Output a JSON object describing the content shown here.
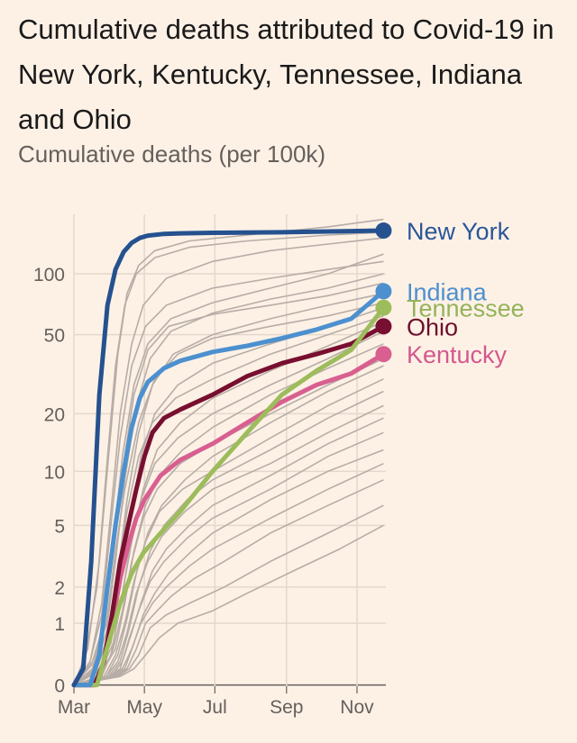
{
  "chart_data": {
    "type": "line",
    "title": "Cumulative deaths attributed to Covid-19 in New York, Kentucky, Tennessee, Indiana and Ohio",
    "subtitle": "Cumulative deaths (per 100k)",
    "x_ticks": [
      "Mar",
      "May",
      "Jul",
      "Sep",
      "Nov"
    ],
    "x_tick_days": [
      0,
      61,
      122,
      184,
      245
    ],
    "xlim": [
      0,
      270
    ],
    "y_scale": "log",
    "y_ticks": [
      0,
      1,
      2,
      5,
      10,
      20,
      50,
      100
    ],
    "ylim": [
      0,
      190
    ],
    "grid": true,
    "legend": "direct-labels-right",
    "highlighted": [
      {
        "name": "New York",
        "color": "#25518f",
        "label_color": "#2a5699",
        "x": [
          0,
          8,
          15,
          22,
          29,
          36,
          43,
          50,
          57,
          64,
          78,
          92,
          120,
          180,
          240,
          268
        ],
        "y": [
          0,
          0.2,
          3,
          25,
          70,
          105,
          128,
          142,
          150,
          154,
          157,
          158,
          159,
          160,
          162,
          163
        ]
      },
      {
        "name": "Indiana",
        "color": "#4c90cf",
        "label_color": "#4d8fcf",
        "x": [
          0,
          14,
          22,
          29,
          36,
          43,
          50,
          57,
          64,
          78,
          92,
          120,
          150,
          180,
          210,
          240,
          268
        ],
        "y": [
          0,
          0,
          0.4,
          2,
          5,
          10,
          17,
          24,
          29,
          34,
          37,
          41,
          44,
          48,
          53,
          60,
          82
        ]
      },
      {
        "name": "Tennessee",
        "color": "#9dbc5b",
        "label_color": "#94b35a",
        "x": [
          0,
          20,
          30,
          40,
          50,
          60,
          75,
          92,
          120,
          150,
          180,
          210,
          240,
          268
        ],
        "y": [
          0,
          0,
          0.6,
          1.5,
          2.5,
          3.4,
          4.5,
          6,
          10,
          16,
          25,
          33,
          42,
          68
        ]
      },
      {
        "name": "Ohio",
        "color": "#780f30",
        "label_color": "#6e0f2b",
        "x": [
          0,
          18,
          26,
          33,
          40,
          47,
          54,
          61,
          68,
          78,
          92,
          120,
          150,
          180,
          210,
          240,
          268
        ],
        "y": [
          0,
          0,
          0.3,
          1.2,
          3,
          5,
          8,
          12,
          16,
          19,
          21,
          25,
          31,
          36,
          40,
          45,
          55
        ]
      },
      {
        "name": "Kentucky",
        "color": "#d85f8f",
        "label_color": "#d4588c",
        "x": [
          0,
          18,
          26,
          33,
          40,
          47,
          54,
          61,
          75,
          92,
          120,
          150,
          180,
          210,
          240,
          268
        ],
        "y": [
          0,
          0,
          0.3,
          1,
          2.3,
          3.8,
          5.5,
          7,
          9.5,
          11.5,
          14,
          18,
          23,
          28,
          32,
          40
        ]
      }
    ],
    "background": [
      {
        "x": [
          0,
          12,
          22,
          30,
          38,
          46,
          56,
          70,
          100,
          150,
          220,
          268
        ],
        "y": [
          0,
          0.5,
          3,
          12,
          40,
          80,
          110,
          130,
          145,
          155,
          170,
          185
        ]
      },
      {
        "x": [
          0,
          10,
          20,
          28,
          36,
          44,
          54,
          70,
          100,
          150,
          220,
          268
        ],
        "y": [
          0,
          0.4,
          2,
          10,
          35,
          70,
          100,
          120,
          135,
          145,
          155,
          160
        ]
      },
      {
        "x": [
          0,
          14,
          24,
          32,
          40,
          50,
          60,
          80,
          120,
          170,
          220,
          268
        ],
        "y": [
          0,
          0.3,
          1.5,
          6,
          20,
          45,
          70,
          95,
          115,
          130,
          140,
          150
        ]
      },
      {
        "x": [
          0,
          16,
          26,
          34,
          42,
          52,
          64,
          84,
          120,
          170,
          220,
          268
        ],
        "y": [
          0,
          0.2,
          1,
          4,
          12,
          28,
          45,
          60,
          72,
          85,
          100,
          125
        ]
      },
      {
        "x": [
          0,
          14,
          24,
          32,
          40,
          50,
          62,
          80,
          120,
          170,
          220,
          268
        ],
        "y": [
          0,
          0.3,
          1.2,
          5,
          15,
          35,
          55,
          70,
          85,
          95,
          105,
          115
        ]
      },
      {
        "x": [
          0,
          18,
          28,
          36,
          44,
          54,
          66,
          84,
          120,
          170,
          220,
          268
        ],
        "y": [
          0,
          0.2,
          0.8,
          3,
          9,
          22,
          38,
          52,
          64,
          75,
          85,
          100
        ]
      },
      {
        "x": [
          0,
          16,
          26,
          34,
          42,
          52,
          64,
          82,
          120,
          170,
          220,
          268
        ],
        "y": [
          0,
          0.3,
          1,
          4,
          10,
          25,
          42,
          55,
          63,
          70,
          78,
          90
        ]
      },
      {
        "x": [
          0,
          20,
          30,
          38,
          46,
          56,
          68,
          86,
          120,
          170,
          220,
          268
        ],
        "y": [
          0,
          0.2,
          0.7,
          2.5,
          7,
          16,
          28,
          40,
          50,
          60,
          70,
          80
        ]
      },
      {
        "x": [
          0,
          18,
          28,
          36,
          44,
          56,
          70,
          90,
          120,
          170,
          220,
          268
        ],
        "y": [
          0,
          0.3,
          1,
          3.5,
          8,
          18,
          30,
          40,
          48,
          55,
          62,
          72
        ]
      },
      {
        "x": [
          0,
          22,
          32,
          40,
          48,
          58,
          70,
          90,
          120,
          170,
          220,
          268
        ],
        "y": [
          0,
          0.2,
          0.6,
          2,
          5,
          12,
          20,
          28,
          36,
          45,
          55,
          68
        ]
      },
      {
        "x": [
          0,
          20,
          30,
          38,
          46,
          56,
          68,
          88,
          120,
          170,
          220,
          268
        ],
        "y": [
          0,
          0.2,
          0.8,
          2.5,
          6,
          12,
          18,
          24,
          30,
          40,
          50,
          62
        ]
      },
      {
        "x": [
          0,
          24,
          34,
          42,
          50,
          60,
          72,
          92,
          120,
          170,
          220,
          268
        ],
        "y": [
          0,
          0.2,
          0.6,
          1.8,
          4,
          8,
          13,
          18,
          24,
          33,
          44,
          58
        ]
      },
      {
        "x": [
          0,
          22,
          32,
          40,
          48,
          58,
          70,
          90,
          120,
          170,
          220,
          268
        ],
        "y": [
          0,
          0.1,
          0.4,
          1.4,
          3.5,
          7,
          11,
          15,
          20,
          28,
          38,
          52
        ]
      },
      {
        "x": [
          0,
          26,
          36,
          44,
          52,
          62,
          74,
          94,
          120,
          170,
          220,
          268
        ],
        "y": [
          0,
          0.2,
          0.5,
          1.5,
          3.5,
          6.5,
          9.5,
          13,
          17,
          25,
          34,
          45
        ]
      },
      {
        "x": [
          0,
          24,
          34,
          42,
          50,
          60,
          72,
          92,
          120,
          170,
          220,
          268
        ],
        "y": [
          0,
          0.1,
          0.5,
          1.3,
          3,
          5.5,
          8,
          11,
          14,
          20,
          28,
          38
        ]
      },
      {
        "x": [
          0,
          28,
          38,
          46,
          54,
          64,
          76,
          96,
          120,
          170,
          220,
          268
        ],
        "y": [
          0,
          0.1,
          0.4,
          1.1,
          2.5,
          4.5,
          6.5,
          9,
          12,
          18,
          26,
          35
        ]
      },
      {
        "x": [
          0,
          26,
          36,
          44,
          52,
          62,
          74,
          94,
          120,
          170,
          220,
          268
        ],
        "y": [
          0,
          0.1,
          0.4,
          1,
          2.2,
          4,
          6,
          8,
          10,
          15,
          22,
          30
        ]
      },
      {
        "x": [
          0,
          30,
          40,
          48,
          56,
          66,
          78,
          98,
          120,
          170,
          220,
          268
        ],
        "y": [
          0,
          0.1,
          0.3,
          0.9,
          2,
          3.5,
          5,
          7,
          9,
          13,
          19,
          26
        ]
      },
      {
        "x": [
          0,
          28,
          38,
          46,
          54,
          64,
          76,
          96,
          120,
          170,
          220,
          268
        ],
        "y": [
          0,
          0.1,
          0.3,
          0.8,
          1.8,
          3,
          4.3,
          6,
          8,
          11,
          16,
          22
        ]
      },
      {
        "x": [
          0,
          32,
          42,
          50,
          58,
          68,
          80,
          100,
          120,
          170,
          220,
          268
        ],
        "y": [
          0,
          0.1,
          0.3,
          0.8,
          1.5,
          2.6,
          3.6,
          5,
          6.5,
          9.5,
          14,
          19
        ]
      },
      {
        "x": [
          0,
          30,
          40,
          48,
          56,
          66,
          78,
          98,
          120,
          170,
          220,
          268
        ],
        "y": [
          0,
          0.1,
          0.2,
          0.7,
          1.3,
          2.2,
          3,
          4.2,
          5.5,
          8,
          12,
          16
        ]
      },
      {
        "x": [
          0,
          34,
          44,
          52,
          60,
          70,
          82,
          102,
          120,
          170,
          220,
          268
        ],
        "y": [
          0,
          0.1,
          0.2,
          0.6,
          1.2,
          1.8,
          2.5,
          3.5,
          4.5,
          7,
          10,
          13
        ]
      },
      {
        "x": [
          0,
          32,
          42,
          50,
          58,
          68,
          80,
          100,
          120,
          170,
          220,
          268
        ],
        "y": [
          0,
          0.1,
          0.2,
          0.5,
          1,
          1.5,
          2,
          2.8,
          3.6,
          5.5,
          8,
          11
        ]
      },
      {
        "x": [
          0,
          36,
          46,
          54,
          62,
          72,
          84,
          104,
          130,
          170,
          220,
          268
        ],
        "y": [
          0,
          0.1,
          0.2,
          0.5,
          1,
          1.3,
          1.7,
          2.3,
          3,
          4.5,
          6.5,
          9
        ]
      },
      {
        "x": [
          0,
          38,
          48,
          56,
          66,
          80,
          100,
          130,
          170,
          220,
          268
        ],
        "y": [
          0,
          0.1,
          0.2,
          0.4,
          0.9,
          1.2,
          1.5,
          2,
          3,
          4.5,
          6.5
        ]
      },
      {
        "x": [
          0,
          40,
          52,
          62,
          74,
          90,
          120,
          150,
          190,
          230,
          268
        ],
        "y": [
          0,
          0.1,
          0.2,
          0.4,
          0.7,
          1,
          1.3,
          1.8,
          2.6,
          3.6,
          5
        ]
      }
    ]
  }
}
